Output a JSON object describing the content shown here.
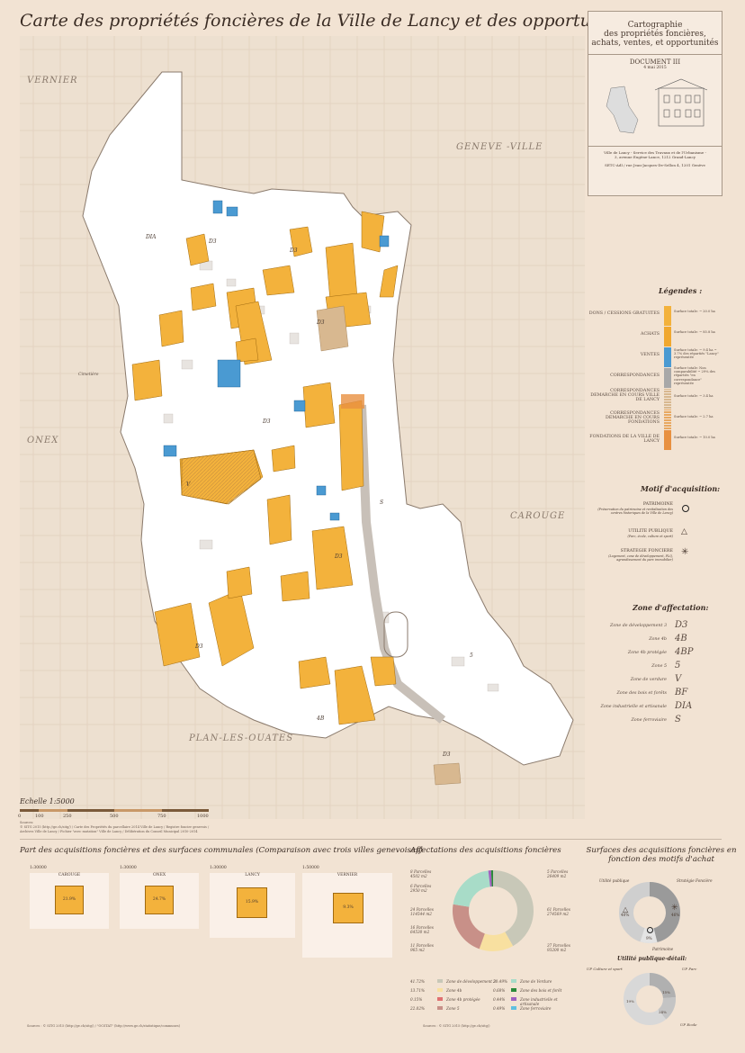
{
  "title": "Carte des propriétés foncières de la Ville de Lancy et des opportunités d'achat",
  "map": {
    "towns": [
      {
        "label": "VERNIER",
        "key": "vernier"
      },
      {
        "label": "GENEVE -VILLE",
        "key": "geneve"
      },
      {
        "label": "ONEX",
        "key": "onex"
      },
      {
        "label": "CAROUGE",
        "key": "carouge"
      },
      {
        "label": "PLAN-LES-OUATES",
        "key": "plo"
      }
    ],
    "annotation": "Cimetière",
    "scale_title": "Echelle 1:5000",
    "scale_ticks": [
      "0",
      "100",
      "250",
      "500",
      "750",
      "1000"
    ],
    "sources_label": "Sources:",
    "sources_line1": "© SITG 2015 (http://ge.ch/sitg/) / Carte des Propriétés du parcellaire 2014 Ville de Lancy / Registre foncier genevois /",
    "sources_line2": "Archives Ville de Lancy / Fichier \"avec mutation\" Ville de Lancy / Délibération du Conseil Municipal 2010-2014"
  },
  "panel": {
    "heading_l1": "Cartographie",
    "heading_l2": "des propriétés foncières,",
    "heading_l3": "achats, ventes, et opportunités",
    "doc": "DOCUMENT III",
    "date": "4 mai 2015",
    "footer_l1": "Ville de Lancy - Service des Travaux et de l'Urbanisme -",
    "footer_l2": "3, avenue Eugène-Lance, 1212 Grand-Lancy",
    "footer_l3": "SETC-AdI / rue Jean-Jacques-De-Sellon 4, 1201 Genève"
  },
  "legend": {
    "title": "Légendes :",
    "items": [
      {
        "label": "DONS / CESSIONS GRATUITES",
        "note": "Surface totale: ~ 20.0 ha",
        "color": "#f3b23c"
      },
      {
        "label": "ACHATS",
        "note": "Surface totale: ~ 85.8 ha",
        "color": "#f0a830"
      },
      {
        "label": "VENTES",
        "note": "Surface totale: ~ 9.4 ha ~ 3.7% des répartiés \"Lancy\" représentée",
        "color": "#4a9ad2"
      },
      {
        "label": "CORRESPONDANCES",
        "note": "Surface totale: Non comparabilité ~ 29% des répartiés \"en correspondance\" représentée",
        "color": "#a8a8a8"
      },
      {
        "label": "CORRESPONDANCES DEMARCHE EN COURS VILLE DE LANCY",
        "note": "Surface totale: ~ 3.4 ha",
        "color": "#d8b890"
      },
      {
        "label": "CORRESPONDANCES DEMARCHE EN COURS FONDATIONS",
        "note": "Surface totale: ~ 2.7 ha",
        "color": "#e8a860"
      },
      {
        "label": "FONDATIONS DE LA VILLE DE LANCY",
        "note": "Surface totale: ~ 10.0 ha",
        "color": "#e89040"
      }
    ],
    "motif_title": "Motif d'acquisition:",
    "motifs": [
      {
        "label": "PATRIMOINE",
        "desc": "(Préservation du patrimoine et revitalisation des centres historiques de la Ville de Lancy)",
        "icon": "circle-icon"
      },
      {
        "label": "UTILITE PUBLIQUE",
        "desc": "(Parc, école, culture et sport)",
        "icon": "triangle-icon"
      },
      {
        "label": "STRATEGIE FONCIERE",
        "desc": "(Logement, zone de développement, PLQ, agrandissement du parc immobilier)",
        "icon": "asterisk-icon"
      }
    ],
    "zone_title": "Zone d'affectation:",
    "zones": [
      {
        "label": "Zone de développement 3",
        "code": "D3"
      },
      {
        "label": "Zone 4b",
        "code": "4B"
      },
      {
        "label": "Zone 4b protégée",
        "code": "4BP"
      },
      {
        "label": "Zone 5",
        "code": "5"
      },
      {
        "label": "Zone de verdure",
        "code": "V"
      },
      {
        "label": "Zone des bois et forêts",
        "code": "BF"
      },
      {
        "label": "Zone industrielle et artisanale",
        "code": "DIA"
      },
      {
        "label": "Zone ferroviaire",
        "code": "S"
      }
    ]
  },
  "bottom": {
    "compare_title": "Part des acquisitions foncières et des surfaces communales (Comparaison avec trois villes genevoises)",
    "cities": [
      {
        "name": "CAROUGE",
        "scale": "1:30000",
        "pct": "21.9%",
        "size": 30
      },
      {
        "name": "ONEX",
        "scale": "1:30000",
        "pct": "24.7%",
        "size": 30
      },
      {
        "name": "LANCY",
        "scale": "1:30000",
        "pct": "15.9%",
        "size": 30
      },
      {
        "name": "VERNIER",
        "scale": "1:50000",
        "pct": "9.3%",
        "size": 30
      }
    ],
    "affect_title": "Affectations des acquisitions foncières",
    "affect_labels": [
      {
        "text": "8 Parcelles\n4502 m2"
      },
      {
        "text": "6 Parcelles\n2950 m2"
      },
      {
        "text": "24 Parcelles\n114544 m2"
      },
      {
        "text": "16 Parcelles\n64530 m2"
      },
      {
        "text": "11 Parcelles\n965 m2"
      },
      {
        "text": "5 Parcelles\n26409 m2"
      },
      {
        "text": "61 Parcelles\n274569 m2"
      },
      {
        "text": "37 Parcelles\n93200 m2"
      }
    ],
    "affect_legend": [
      {
        "pct": "41.72%",
        "label": "Zone de développement 3",
        "color": "#c8c8b8"
      },
      {
        "pct": "13.71%",
        "label": "Zone 4b",
        "color": "#f8e0a0"
      },
      {
        "pct": "0.15%",
        "label": "Zone 4b protégée",
        "color": "#e07070"
      },
      {
        "pct": "22.02%",
        "label": "Zone 5",
        "color": "#c89088"
      },
      {
        "pct": "20.49%",
        "label": "Zone de Verdure",
        "color": "#a8dcc8"
      },
      {
        "pct": "0.68%",
        "label": "Zone des bois et forêt",
        "color": "#2a8a3a"
      },
      {
        "pct": "0.44%",
        "label": "Zone industrielle et artisanale",
        "color": "#a060c0"
      },
      {
        "pct": "0.49%",
        "label": "Zone ferroviaire",
        "color": "#60c0e0"
      }
    ],
    "motif_chart_title": "Surfaces des acquisitions foncières en fonction des motifs d'achat",
    "motif_chart": [
      {
        "label": "Utilité publique",
        "pct": "40%"
      },
      {
        "label": "Stratégie Foncière",
        "pct": "46%"
      },
      {
        "label": "Patrimoine",
        "pct": "9%"
      }
    ],
    "detail_title": "Utilité publique-détail:",
    "detail_chart": [
      {
        "label": "UP Culture et sport",
        "pct": "19%"
      },
      {
        "label": "UP Parc",
        "pct": "15%"
      },
      {
        "label": "UP Ecole",
        "pct": "24%"
      }
    ],
    "footer_src": "Sources : © SITG 2015 (http://ge.ch/sitg/) / \"OCSTAT\" (http://www.ge.ch/statistique/communes)",
    "footer_src2": "Sources : © SITG 2015 (http://ge.ch/sitg/)"
  }
}
